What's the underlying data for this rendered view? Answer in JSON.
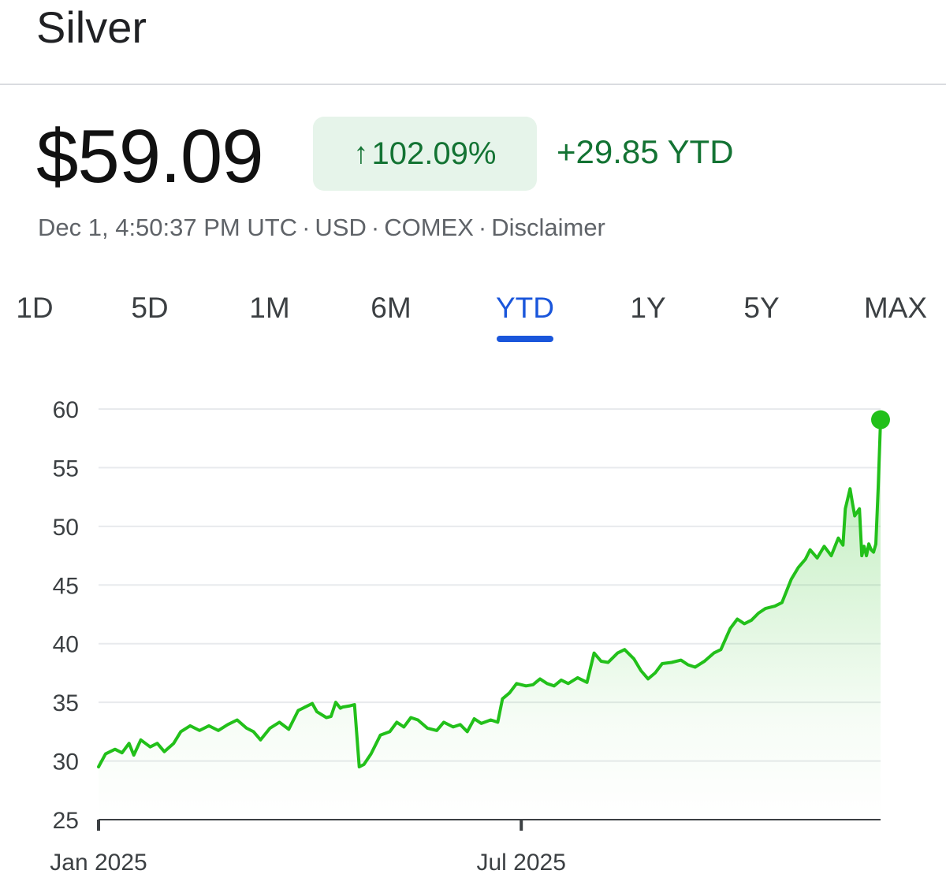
{
  "header": {
    "title": "Silver"
  },
  "quote": {
    "price": "$59.09",
    "change_pct": "102.09%",
    "change_abs": "+29.85 YTD",
    "meta": [
      "Dec 1, 4:50:37 PM UTC",
      "USD",
      "COMEX",
      "Disclaimer"
    ],
    "separator": "·"
  },
  "tabs": [
    {
      "label": "1D",
      "active": false
    },
    {
      "label": "5D",
      "active": false
    },
    {
      "label": "1M",
      "active": false
    },
    {
      "label": "6M",
      "active": false
    },
    {
      "label": "YTD",
      "active": true
    },
    {
      "label": "1Y",
      "active": false
    },
    {
      "label": "5Y",
      "active": false
    },
    {
      "label": "MAX",
      "active": false
    }
  ],
  "colors": {
    "line": "#22c01a",
    "positive_text": "#137333",
    "badge_bg": "#e6f4ea",
    "active_tab": "#1a56db",
    "grid": "#e8eaed"
  },
  "icons": {
    "change_arrow": "arrow-up-icon"
  },
  "chart_data": {
    "type": "area",
    "title": "",
    "xlabel": "",
    "ylabel": "",
    "ylim": [
      25,
      60
    ],
    "yticks": [
      60,
      55,
      50,
      45,
      40,
      35,
      30,
      25
    ],
    "xticks": [
      {
        "label": "Jan 2025",
        "x": "2025-01-02"
      },
      {
        "label": "Jul 2025",
        "x": "2025-07-01"
      }
    ],
    "grid": true,
    "series": [
      {
        "values": [
          [
            "2025-01-02",
            29.5
          ],
          [
            "2025-01-05",
            30.6
          ],
          [
            "2025-01-09",
            31.0
          ],
          [
            "2025-01-12",
            30.7
          ],
          [
            "2025-01-15",
            31.5
          ],
          [
            "2025-01-17",
            30.5
          ],
          [
            "2025-01-20",
            31.8
          ],
          [
            "2025-01-24",
            31.2
          ],
          [
            "2025-01-27",
            31.5
          ],
          [
            "2025-01-30",
            30.8
          ],
          [
            "2025-02-03",
            31.5
          ],
          [
            "2025-02-06",
            32.5
          ],
          [
            "2025-02-10",
            33.0
          ],
          [
            "2025-02-14",
            32.6
          ],
          [
            "2025-02-18",
            33.0
          ],
          [
            "2025-02-22",
            32.6
          ],
          [
            "2025-02-26",
            33.1
          ],
          [
            "2025-03-02",
            33.5
          ],
          [
            "2025-03-06",
            32.8
          ],
          [
            "2025-03-09",
            32.5
          ],
          [
            "2025-03-12",
            31.8
          ],
          [
            "2025-03-16",
            32.8
          ],
          [
            "2025-03-20",
            33.3
          ],
          [
            "2025-03-24",
            32.7
          ],
          [
            "2025-03-28",
            34.3
          ],
          [
            "2025-03-31",
            34.6
          ],
          [
            "2025-04-03",
            34.9
          ],
          [
            "2025-04-05",
            34.2
          ],
          [
            "2025-04-09",
            33.7
          ],
          [
            "2025-04-11",
            33.8
          ],
          [
            "2025-04-13",
            35.0
          ],
          [
            "2025-04-15",
            34.5
          ],
          [
            "2025-04-16",
            34.6
          ],
          [
            "2025-04-19",
            34.7
          ],
          [
            "2025-04-21",
            34.8
          ],
          [
            "2025-04-23",
            29.5
          ],
          [
            "2025-04-25",
            29.7
          ],
          [
            "2025-04-28",
            30.6
          ],
          [
            "2025-05-02",
            32.2
          ],
          [
            "2025-05-06",
            32.5
          ],
          [
            "2025-05-09",
            33.3
          ],
          [
            "2025-05-12",
            32.9
          ],
          [
            "2025-05-15",
            33.7
          ],
          [
            "2025-05-18",
            33.5
          ],
          [
            "2025-05-22",
            32.8
          ],
          [
            "2025-05-26",
            32.6
          ],
          [
            "2025-05-29",
            33.3
          ],
          [
            "2025-06-02",
            32.9
          ],
          [
            "2025-06-05",
            33.1
          ],
          [
            "2025-06-08",
            32.5
          ],
          [
            "2025-06-11",
            33.6
          ],
          [
            "2025-06-14",
            33.2
          ],
          [
            "2025-06-18",
            33.5
          ],
          [
            "2025-06-21",
            33.3
          ],
          [
            "2025-06-23",
            35.3
          ],
          [
            "2025-06-26",
            35.8
          ],
          [
            "2025-06-29",
            36.6
          ],
          [
            "2025-07-03",
            36.4
          ],
          [
            "2025-07-06",
            36.5
          ],
          [
            "2025-07-09",
            37.0
          ],
          [
            "2025-07-12",
            36.6
          ],
          [
            "2025-07-15",
            36.4
          ],
          [
            "2025-07-18",
            36.9
          ],
          [
            "2025-07-21",
            36.6
          ],
          [
            "2025-07-25",
            37.1
          ],
          [
            "2025-07-29",
            36.7
          ],
          [
            "2025-08-01",
            39.2
          ],
          [
            "2025-08-04",
            38.5
          ],
          [
            "2025-08-07",
            38.4
          ],
          [
            "2025-08-11",
            39.2
          ],
          [
            "2025-08-14",
            39.5
          ],
          [
            "2025-08-18",
            38.7
          ],
          [
            "2025-08-21",
            37.7
          ],
          [
            "2025-08-24",
            37.0
          ],
          [
            "2025-08-27",
            37.5
          ],
          [
            "2025-08-30",
            38.3
          ],
          [
            "2025-09-03",
            38.4
          ],
          [
            "2025-09-07",
            38.6
          ],
          [
            "2025-09-10",
            38.2
          ],
          [
            "2025-09-13",
            38.0
          ],
          [
            "2025-09-17",
            38.5
          ],
          [
            "2025-09-21",
            39.2
          ],
          [
            "2025-09-24",
            39.5
          ],
          [
            "2025-09-28",
            41.3
          ],
          [
            "2025-10-01",
            42.1
          ],
          [
            "2025-10-04",
            41.7
          ],
          [
            "2025-10-07",
            42.0
          ],
          [
            "2025-10-10",
            42.6
          ],
          [
            "2025-10-13",
            43.0
          ],
          [
            "2025-10-17",
            43.2
          ],
          [
            "2025-10-20",
            43.5
          ],
          [
            "2025-10-24",
            45.5
          ],
          [
            "2025-10-27",
            46.5
          ],
          [
            "2025-10-30",
            47.2
          ],
          [
            "2025-11-01",
            48.0
          ],
          [
            "2025-11-04",
            47.3
          ],
          [
            "2025-11-07",
            48.3
          ],
          [
            "2025-11-10",
            47.5
          ],
          [
            "2025-11-13",
            49.0
          ],
          [
            "2025-11-15",
            48.4
          ],
          [
            "2025-11-16",
            51.5
          ],
          [
            "2025-11-18",
            53.2
          ],
          [
            "2025-11-19",
            52.0
          ],
          [
            "2025-11-20",
            50.9
          ],
          [
            "2025-11-22",
            51.5
          ],
          [
            "2025-11-23",
            47.5
          ],
          [
            "2025-11-24",
            48.3
          ],
          [
            "2025-11-25",
            47.5
          ],
          [
            "2025-11-26",
            48.5
          ],
          [
            "2025-11-27",
            48.0
          ],
          [
            "2025-11-28",
            47.8
          ],
          [
            "2025-11-29",
            48.5
          ],
          [
            "2025-11-30",
            53.3
          ],
          [
            "2025-12-01",
            59.09
          ]
        ]
      }
    ]
  }
}
